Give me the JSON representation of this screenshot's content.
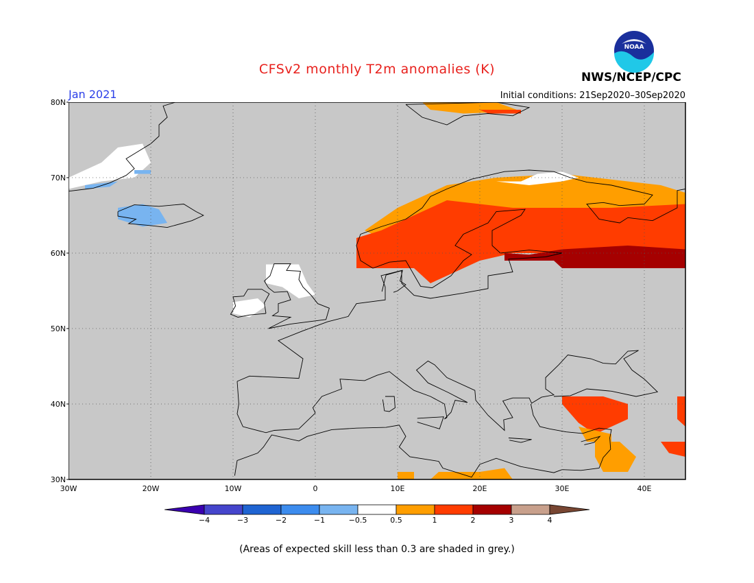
{
  "title": "CFSv2 monthly T2m anomalies (K)",
  "month": "Jan 2021",
  "initial_conditions": "Initial conditions: 21Sep2020–30Sep2020",
  "agency": "NWS/NCEP/CPC",
  "logo_text": "NOAA",
  "footer": "(Areas of expected skill less than 0.3 are shaded in grey.)",
  "map": {
    "lon_range": [
      -30,
      45
    ],
    "lat_range": [
      30,
      80
    ],
    "background_color": "#c8c8c8",
    "lat_labels": [
      "30N",
      "40N",
      "50N",
      "60N",
      "70N",
      "80N"
    ],
    "lon_labels": [
      "30W",
      "20W",
      "10W",
      "0",
      "10E",
      "20E",
      "30E",
      "40E"
    ],
    "grid": "dotted"
  },
  "colorbar": {
    "tick_labels": [
      "−4",
      "−3",
      "−2",
      "−1",
      "−0.5",
      "0.5",
      "1",
      "2",
      "3",
      "4"
    ],
    "colors": [
      "#3a00b0",
      "#4545cc",
      "#1f64d2",
      "#3c8cee",
      "#78b4f0",
      "#ffffff",
      "#ff9e00",
      "#ff3c00",
      "#a50000",
      "#c8a08c",
      "#784632"
    ]
  }
}
